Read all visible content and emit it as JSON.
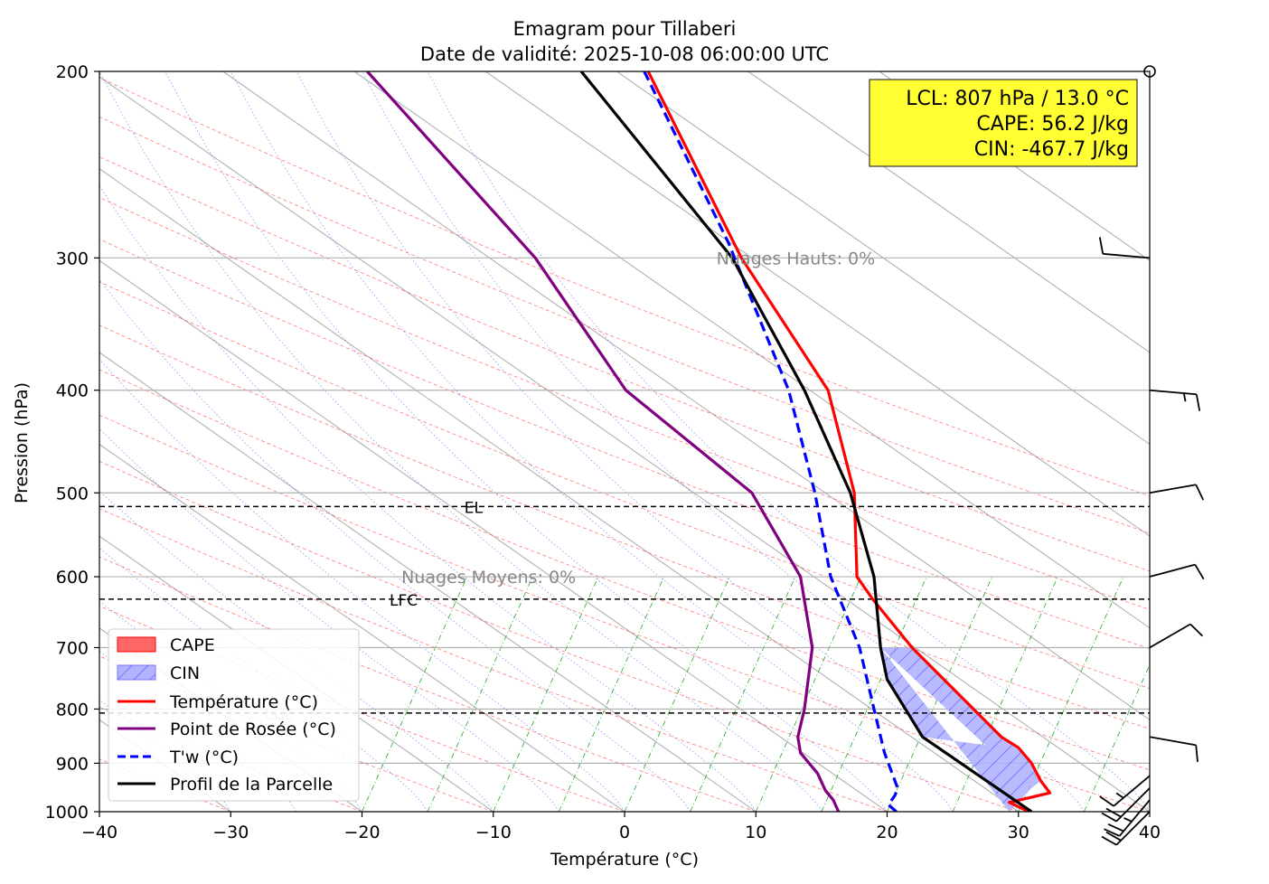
{
  "chart_data": {
    "type": "line",
    "title": "Emagram pour Tillaberi",
    "subtitle": "Date de validité: 2025-10-08 06:00:00 UTC",
    "xlabel": "Température (°C)",
    "ylabel": "Pression (hPa)",
    "xlim": [
      -40,
      40
    ],
    "ylim": [
      1000,
      200
    ],
    "yscale": "log",
    "grid": true,
    "x_ticks": [
      -40,
      -30,
      -20,
      -10,
      0,
      10,
      20,
      30,
      40
    ],
    "x_tick_labels": [
      "−40",
      "−30",
      "−20",
      "−10",
      "0",
      "10",
      "20",
      "30",
      "40"
    ],
    "y_ticks": [
      1000,
      900,
      800,
      700,
      600,
      500,
      400,
      300,
      200
    ],
    "y_tick_labels": [
      "1000",
      "900",
      "800",
      "700",
      "600",
      "500",
      "400",
      "300",
      "200"
    ],
    "legend_position": "lower-left",
    "series": [
      {
        "name": "Température (°C)",
        "color": "#ff0000",
        "style": "solid",
        "points": [
          [
            30.8,
            1000
          ],
          [
            29.3,
            980
          ],
          [
            32.4,
            960
          ],
          [
            31.7,
            935
          ],
          [
            31.0,
            900
          ],
          [
            30.0,
            870
          ],
          [
            28.7,
            850
          ],
          [
            21.9,
            700
          ],
          [
            18.9,
            630
          ],
          [
            17.7,
            600
          ],
          [
            17.5,
            500
          ],
          [
            15.5,
            400
          ],
          [
            8.9,
            300
          ],
          [
            1.8,
            200
          ]
        ]
      },
      {
        "name": "Point de Rosée (°C)",
        "color": "#800080",
        "style": "solid",
        "points": [
          [
            16.3,
            1000
          ],
          [
            15.9,
            975
          ],
          [
            15.3,
            955
          ],
          [
            14.7,
            920
          ],
          [
            13.4,
            880
          ],
          [
            13.2,
            850
          ],
          [
            13.7,
            800
          ],
          [
            14.3,
            700
          ],
          [
            13.4,
            600
          ],
          [
            9.7,
            500
          ],
          [
            0.1,
            400
          ],
          [
            -6.8,
            300
          ],
          [
            -19.6,
            200
          ]
        ]
      },
      {
        "name": "T'w (°C)",
        "color": "#0000ff",
        "style": "dashed",
        "points": [
          [
            20.7,
            1000
          ],
          [
            20.1,
            985
          ],
          [
            20.6,
            965
          ],
          [
            20.8,
            950
          ],
          [
            19.8,
            880
          ],
          [
            19.0,
            800
          ],
          [
            17.9,
            700
          ],
          [
            15.7,
            600
          ],
          [
            14.5,
            500
          ],
          [
            12.5,
            400
          ],
          [
            9.3,
            320
          ],
          [
            7.9,
            290
          ],
          [
            1.5,
            200
          ]
        ]
      },
      {
        "name": "Profil de la Parcelle",
        "color": "#000000",
        "style": "solid",
        "points": [
          [
            31.0,
            1000
          ],
          [
            22.7,
            850
          ],
          [
            20.0,
            750
          ],
          [
            19.5,
            700
          ],
          [
            19.0,
            600
          ],
          [
            17.2,
            500
          ],
          [
            13.7,
            400
          ],
          [
            8.2,
            300
          ],
          [
            -3.3,
            200
          ]
        ]
      }
    ],
    "cin_region": {
      "name": "CIN",
      "color": "#4d4dff",
      "left_points": [
        [
          29.3,
          1000
        ],
        [
          31.0,
          950
        ],
        [
          29.0,
          870
        ],
        [
          22.7,
          850
        ],
        [
          20.0,
          750
        ],
        [
          19.5,
          700
        ]
      ],
      "right_points": [
        [
          19.5,
          700
        ],
        [
          21.9,
          700
        ],
        [
          28.7,
          850
        ],
        [
          30.0,
          870
        ],
        [
          31.0,
          900
        ],
        [
          31.7,
          935
        ],
        [
          31.0,
          950
        ]
      ]
    },
    "cape_legend": {
      "name": "CAPE",
      "color": "#ff6666"
    },
    "levels": [
      {
        "label": "EL",
        "pressure": 515
      },
      {
        "label": "LFC",
        "pressure": 630
      },
      {
        "label": "LCL",
        "pressure": 807
      }
    ],
    "cloud_annotations": [
      {
        "text": "Nuages Hauts: 0%",
        "x": 7,
        "pressure": 300
      },
      {
        "text": "Nuages Moyens: 0%",
        "x": -17,
        "pressure": 600
      }
    ],
    "info_box": {
      "lines": [
        "LCL: 807 hPa / 13.0 °C",
        "CAPE: 56.2 J/kg",
        "CIN: -467.7 J/kg"
      ],
      "background": "#ffff33"
    },
    "wind_barbs": [
      {
        "pressure": 1000,
        "direction": 225,
        "speed": 20
      },
      {
        "pressure": 975,
        "direction": 220,
        "speed": 25
      },
      {
        "pressure": 950,
        "direction": 225,
        "speed": 20
      },
      {
        "pressure": 925,
        "direction": 230,
        "speed": 15
      },
      {
        "pressure": 850,
        "direction": 100,
        "speed": 10
      },
      {
        "pressure": 700,
        "direction": 60,
        "speed": 10
      },
      {
        "pressure": 600,
        "direction": 75,
        "speed": 10
      },
      {
        "pressure": 500,
        "direction": 80,
        "speed": 10
      },
      {
        "pressure": 400,
        "direction": 95,
        "speed": 15
      },
      {
        "pressure": 300,
        "direction": 275,
        "speed": 10
      },
      {
        "pressure": 200,
        "direction": 0,
        "speed": 0
      }
    ]
  }
}
